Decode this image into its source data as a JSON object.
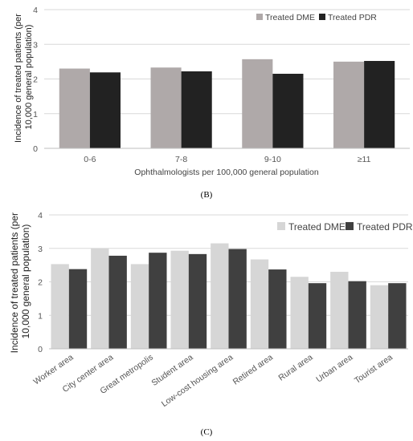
{
  "chart_data": [
    {
      "type": "bar",
      "panel_label": "(B)",
      "categories": [
        "0-6",
        "7-8",
        "9-10",
        "≥11"
      ],
      "series": [
        {
          "name": "Treated DME",
          "values": [
            2.3,
            2.33,
            2.57,
            2.5
          ]
        },
        {
          "name": "Treated PDR",
          "values": [
            2.19,
            2.22,
            2.15,
            2.52
          ]
        }
      ],
      "colors": [
        "#afa9a9",
        "#222222"
      ],
      "xlabel": "Ophthalmologists per 100,000 general population",
      "ylabel": [
        "Incidence of treated patients  (per",
        "10,000 general population)"
      ],
      "ylim": [
        0,
        4
      ],
      "yticks": [
        "0",
        "1",
        "2",
        "3",
        "4"
      ],
      "grid": true,
      "legend": "top-right"
    },
    {
      "type": "bar",
      "panel_label": "(C)",
      "categories": [
        "Worker area",
        "City center area",
        "Great metropolis",
        "Student area",
        "Low-cost housing area",
        "Retired area",
        "Rural area",
        "Urban area",
        "Tourist area"
      ],
      "series": [
        {
          "name": "Treated DME",
          "values": [
            2.53,
            3.0,
            2.53,
            2.93,
            3.15,
            2.67,
            2.15,
            2.3,
            1.9
          ]
        },
        {
          "name": "Treated PDR",
          "values": [
            2.38,
            2.78,
            2.87,
            2.83,
            2.98,
            2.37,
            1.96,
            2.02,
            1.96
          ]
        }
      ],
      "colors": [
        "#d6d6d6",
        "#404040"
      ],
      "xlabel": "",
      "ylabel": [
        "Incidence of treated patients  (per",
        "10,000 general population)"
      ],
      "ylim": [
        0,
        4
      ],
      "yticks": [
        "0",
        "1",
        "2",
        "3",
        "4"
      ],
      "grid": true,
      "legend": "top-right"
    }
  ]
}
